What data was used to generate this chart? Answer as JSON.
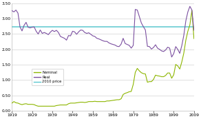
{
  "title": "",
  "xlim": [
    1919,
    2009
  ],
  "ylim": [
    0.0,
    3.5
  ],
  "yticks": [
    0.0,
    0.5,
    1.0,
    1.5,
    2.0,
    2.5,
    3.0,
    3.5
  ],
  "xticks": [
    1919,
    1929,
    1939,
    1949,
    1959,
    1969,
    1979,
    1989,
    1999,
    2009
  ],
  "price_2010": 2.74,
  "line_2010_color": "#5bc8d0",
  "nominal_color": "#8db600",
  "real_color": "#7b4fa0",
  "background_color": "#ffffff",
  "grid_color": "#c8c8c8",
  "legend_labels": [
    "Nominal",
    "Real",
    "2010 price"
  ],
  "nominal": {
    "years": [
      1919,
      1920,
      1921,
      1922,
      1923,
      1924,
      1925,
      1926,
      1927,
      1928,
      1929,
      1930,
      1931,
      1932,
      1933,
      1934,
      1935,
      1936,
      1937,
      1938,
      1939,
      1940,
      1941,
      1942,
      1943,
      1944,
      1945,
      1946,
      1947,
      1948,
      1949,
      1950,
      1951,
      1952,
      1953,
      1954,
      1955,
      1956,
      1957,
      1958,
      1959,
      1960,
      1961,
      1962,
      1963,
      1964,
      1965,
      1966,
      1967,
      1968,
      1969,
      1970,
      1971,
      1972,
      1973,
      1974,
      1975,
      1976,
      1977,
      1978,
      1979,
      1980,
      1981,
      1982,
      1983,
      1984,
      1985,
      1986,
      1987,
      1988,
      1989,
      1990,
      1991,
      1992,
      1993,
      1994,
      1995,
      1996,
      1997,
      1998,
      1999,
      2000,
      2001,
      2002,
      2003,
      2004,
      2005,
      2006,
      2007,
      2008,
      2009
    ],
    "values": [
      0.25,
      0.3,
      0.26,
      0.25,
      0.22,
      0.2,
      0.22,
      0.23,
      0.21,
      0.21,
      0.21,
      0.2,
      0.17,
      0.15,
      0.15,
      0.15,
      0.15,
      0.15,
      0.15,
      0.15,
      0.15,
      0.15,
      0.17,
      0.18,
      0.19,
      0.19,
      0.19,
      0.19,
      0.23,
      0.25,
      0.25,
      0.25,
      0.26,
      0.27,
      0.28,
      0.28,
      0.27,
      0.28,
      0.3,
      0.3,
      0.3,
      0.31,
      0.3,
      0.3,
      0.3,
      0.3,
      0.3,
      0.32,
      0.32,
      0.33,
      0.34,
      0.35,
      0.36,
      0.36,
      0.39,
      0.53,
      0.57,
      0.59,
      0.62,
      0.63,
      0.86,
      1.25,
      1.38,
      1.3,
      1.24,
      1.21,
      1.2,
      0.93,
      0.95,
      0.95,
      1.02,
      1.16,
      1.14,
      1.13,
      1.11,
      1.11,
      1.15,
      1.23,
      1.23,
      1.06,
      1.17,
      1.51,
      1.46,
      1.36,
      1.59,
      1.88,
      2.3,
      2.59,
      2.8,
      3.27,
      2.35
    ]
  },
  "real": {
    "years": [
      1919,
      1920,
      1921,
      1922,
      1923,
      1924,
      1925,
      1926,
      1927,
      1928,
      1929,
      1930,
      1931,
      1932,
      1933,
      1934,
      1935,
      1936,
      1937,
      1938,
      1939,
      1940,
      1941,
      1942,
      1943,
      1944,
      1945,
      1946,
      1947,
      1948,
      1949,
      1950,
      1951,
      1952,
      1953,
      1954,
      1955,
      1956,
      1957,
      1958,
      1959,
      1960,
      1961,
      1962,
      1963,
      1964,
      1965,
      1966,
      1967,
      1968,
      1969,
      1970,
      1971,
      1972,
      1973,
      1974,
      1975,
      1976,
      1977,
      1978,
      1979,
      1980,
      1981,
      1982,
      1983,
      1984,
      1985,
      1986,
      1987,
      1988,
      1989,
      1990,
      1991,
      1992,
      1993,
      1994,
      1995,
      1996,
      1997,
      1998,
      1999,
      2000,
      2001,
      2002,
      2003,
      2004,
      2005,
      2006,
      2007,
      2008,
      2009
    ],
    "values": [
      3.26,
      3.22,
      3.28,
      3.18,
      2.73,
      2.6,
      2.78,
      2.88,
      2.72,
      2.7,
      2.72,
      2.73,
      2.59,
      2.5,
      2.63,
      2.52,
      2.55,
      2.52,
      2.48,
      2.56,
      2.62,
      2.58,
      2.62,
      2.55,
      2.42,
      2.39,
      2.36,
      2.3,
      2.45,
      2.44,
      2.59,
      2.57,
      2.49,
      2.57,
      2.63,
      2.62,
      2.55,
      2.52,
      2.54,
      2.49,
      2.44,
      2.42,
      2.36,
      2.34,
      2.31,
      2.28,
      2.26,
      2.26,
      2.21,
      2.18,
      2.16,
      2.14,
      2.1,
      2.09,
      2.17,
      2.36,
      2.19,
      2.16,
      2.13,
      2.04,
      2.13,
      3.3,
      3.28,
      3.07,
      2.86,
      2.74,
      2.63,
      2.1,
      2.09,
      2.01,
      2.06,
      2.15,
      2.04,
      2.0,
      1.95,
      1.93,
      1.98,
      2.07,
      2.04,
      1.75,
      1.86,
      2.09,
      2.0,
      1.87,
      2.12,
      2.46,
      2.93,
      3.22,
      3.4,
      3.28,
      2.62
    ]
  }
}
